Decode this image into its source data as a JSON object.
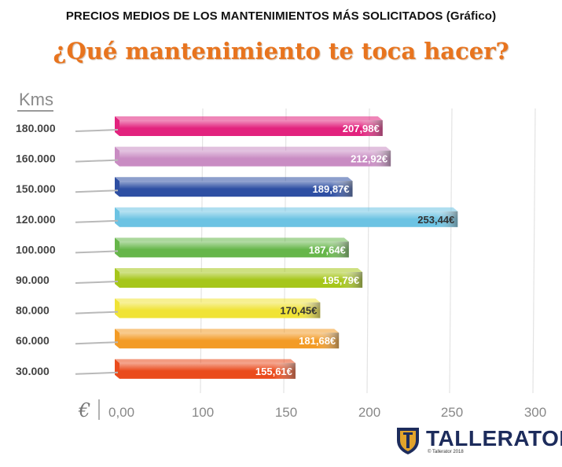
{
  "header": {
    "title": "PRECIOS MEDIOS DE LOS MANTENIMIENTOS MÁS SOLICITADOS (Gráfico)",
    "subtitle": "¿Qué mantenimiento te toca hacer?"
  },
  "brand": {
    "name": "TALLERATOR",
    "copyright": "© Tallerator 2018",
    "colors": {
      "navy": "#1d2c5c",
      "gold": "#e2a32b"
    }
  },
  "chart_data": {
    "type": "bar",
    "orientation": "horizontal",
    "ylabel": "Kms",
    "xlabel": "€",
    "categories": [
      "180.000",
      "160.000",
      "150.000",
      "120.000",
      "100.000",
      "90.000",
      "80.000",
      "60.000",
      "30.000"
    ],
    "values": [
      207.98,
      212.92,
      189.87,
      253.44,
      187.64,
      195.79,
      170.45,
      181.68,
      155.61
    ],
    "value_labels": [
      "207,98€",
      "212,92€",
      "189,87€",
      "253,44€",
      "187,64€",
      "195,79€",
      "170,45€",
      "181,68€",
      "155,61€"
    ],
    "colors": [
      "#e2237e",
      "#c98cc3",
      "#2e4fa3",
      "#6cc3e3",
      "#66b64a",
      "#a6c61a",
      "#f0e336",
      "#f39b25",
      "#ea4b1c"
    ],
    "x_ticks": [
      "0,00",
      "100",
      "150",
      "200",
      "250",
      "300"
    ],
    "x_tick_values": [
      0,
      100,
      150,
      200,
      250,
      300
    ],
    "xlim": [
      0,
      300
    ],
    "grid": true,
    "legend": "none"
  }
}
